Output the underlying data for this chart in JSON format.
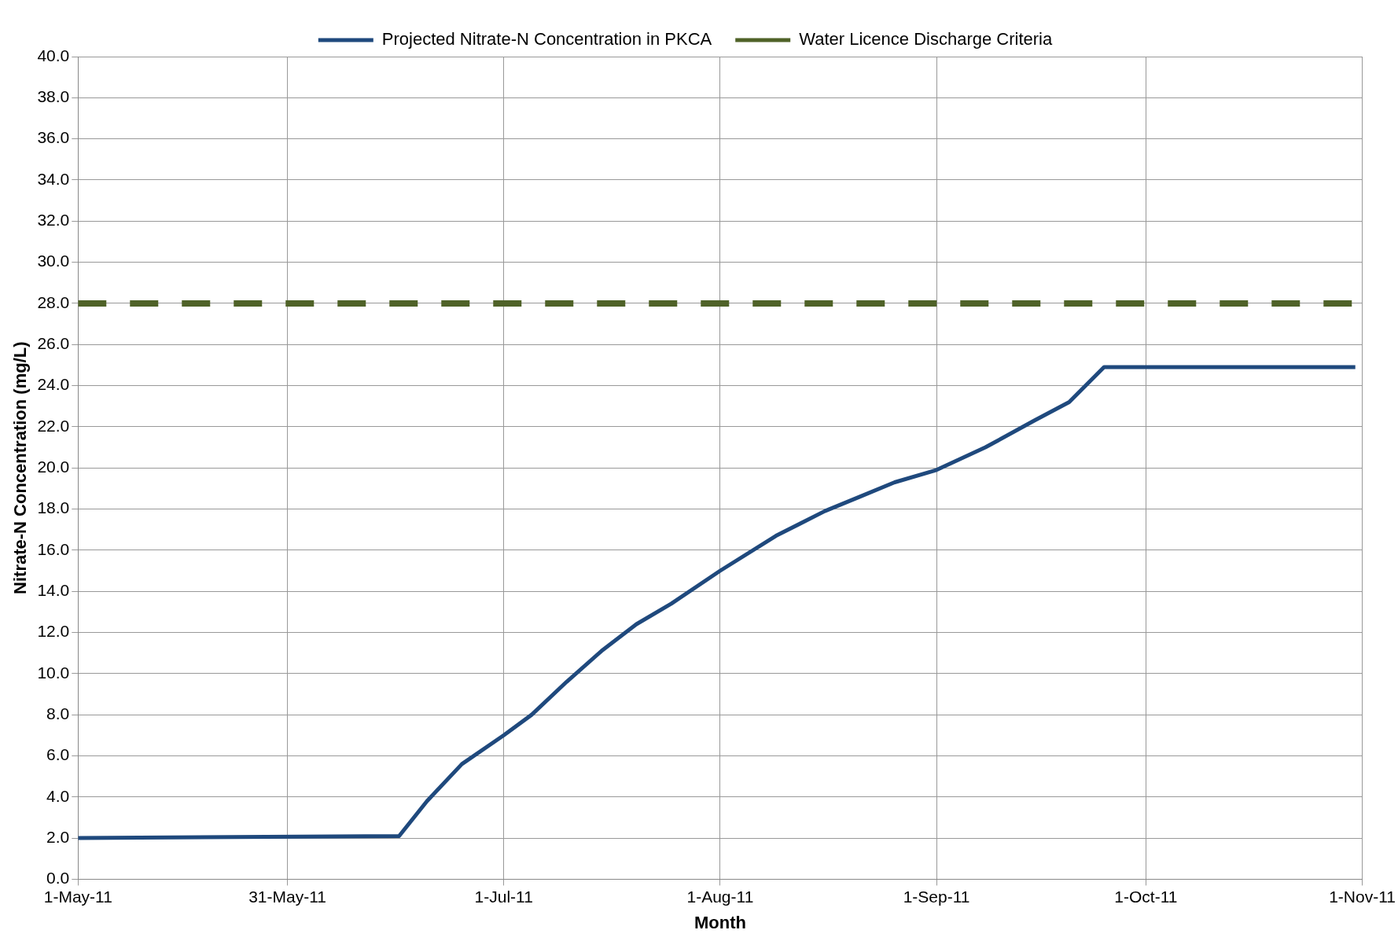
{
  "chart_data": {
    "type": "line",
    "xlabel": "Month",
    "ylabel": "Nitrate-N Concentration (mg/L)",
    "xlim": [
      "2011-05-01",
      "2011-11-01"
    ],
    "xticks": [
      {
        "value": "2011-05-01",
        "label": "1-May-11"
      },
      {
        "value": "2011-05-31",
        "label": "31-May-11"
      },
      {
        "value": "2011-07-01",
        "label": "1-Jul-11"
      },
      {
        "value": "2011-08-01",
        "label": "1-Aug-11"
      },
      {
        "value": "2011-09-01",
        "label": "1-Sep-11"
      },
      {
        "value": "2011-10-01",
        "label": "1-Oct-11"
      },
      {
        "value": "2011-11-01",
        "label": "1-Nov-11"
      }
    ],
    "ylim": [
      0,
      40
    ],
    "yticks": [
      {
        "value": 0,
        "label": "0.0"
      },
      {
        "value": 2,
        "label": "2.0"
      },
      {
        "value": 4,
        "label": "4.0"
      },
      {
        "value": 6,
        "label": "6.0"
      },
      {
        "value": 8,
        "label": "8.0"
      },
      {
        "value": 10,
        "label": "10.0"
      },
      {
        "value": 12,
        "label": "12.0"
      },
      {
        "value": 14,
        "label": "14.0"
      },
      {
        "value": 16,
        "label": "16.0"
      },
      {
        "value": 18,
        "label": "18.0"
      },
      {
        "value": 20,
        "label": "20.0"
      },
      {
        "value": 22,
        "label": "22.0"
      },
      {
        "value": 24,
        "label": "24.0"
      },
      {
        "value": 26,
        "label": "26.0"
      },
      {
        "value": 28,
        "label": "28.0"
      },
      {
        "value": 30,
        "label": "30.0"
      },
      {
        "value": 32,
        "label": "32.0"
      },
      {
        "value": 34,
        "label": "34.0"
      },
      {
        "value": 36,
        "label": "36.0"
      },
      {
        "value": 38,
        "label": "38.0"
      },
      {
        "value": 40,
        "label": "40.0"
      }
    ],
    "grid": true,
    "legend": "top",
    "marker": "none",
    "series": [
      {
        "name": "Projected Nitrate-N Concentration in PKCA",
        "color": "#1f497d",
        "line_style": "solid",
        "x": [
          "2011-05-01",
          "2011-06-16",
          "2011-06-20",
          "2011-06-25",
          "2011-07-01",
          "2011-07-05",
          "2011-07-10",
          "2011-07-15",
          "2011-07-20",
          "2011-07-25",
          "2011-08-01",
          "2011-08-09",
          "2011-08-16",
          "2011-08-21",
          "2011-08-26",
          "2011-09-01",
          "2011-09-08",
          "2011-09-15",
          "2011-09-20",
          "2011-09-25",
          "2011-10-31"
        ],
        "values": [
          2.0,
          2.1,
          3.8,
          5.6,
          7.0,
          8.0,
          9.6,
          11.1,
          12.4,
          13.4,
          15.0,
          16.7,
          17.9,
          18.6,
          19.3,
          19.9,
          21.0,
          22.3,
          23.2,
          24.9,
          24.9
        ]
      },
      {
        "name": "Water Licence Discharge Criteria",
        "color": "#4f6228",
        "line_style": "dashed",
        "x": [
          "2011-05-01",
          "2011-10-31"
        ],
        "values": [
          28,
          28
        ]
      }
    ]
  }
}
